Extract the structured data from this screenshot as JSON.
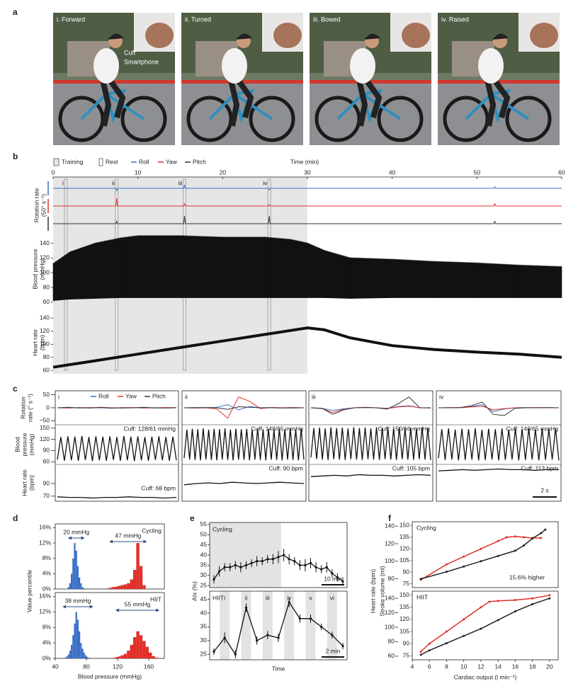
{
  "a": {
    "label": "a",
    "photos": [
      "i. Forward",
      "ii. Turned",
      "iii. Bowed",
      "iv. Raised"
    ],
    "annotations": [
      "Cuff",
      "Smartphone"
    ]
  },
  "b": {
    "label": "b",
    "legend": [
      "Training",
      "Rest"
    ],
    "xlabel": "Time (min)",
    "xlim": [
      0,
      60
    ],
    "xticks": [
      0,
      10,
      20,
      30,
      40,
      50,
      60
    ],
    "training_span": [
      0,
      30
    ],
    "rest_markers": [
      {
        "label": "i",
        "x": 1.5
      },
      {
        "label": "ii",
        "x": 7.5
      },
      {
        "label": "iii",
        "x": 15.5
      },
      {
        "label": "iv",
        "x": 25.5
      }
    ],
    "rotation": {
      "ylabel": [
        "Rotation rate",
        "(50° s⁻¹)"
      ],
      "ylim": [
        -1,
        1
      ],
      "x": [
        0,
        7.4,
        7.5,
        7.6,
        15.4,
        15.5,
        15.6,
        25.4,
        25.5,
        25.6,
        52,
        52.1,
        52.2,
        60
      ],
      "series": [
        {
          "name": "Roll",
          "color": "#3a6fc4",
          "values": [
            0,
            0,
            -0.3,
            0,
            0,
            0.4,
            0,
            0,
            -0.2,
            0,
            0,
            0.2,
            0,
            0
          ]
        },
        {
          "name": "Yaw",
          "color": "#e0302a",
          "values": [
            0,
            0,
            1,
            0,
            0,
            0.3,
            0,
            0,
            0.2,
            0,
            0,
            0.3,
            0,
            0
          ]
        },
        {
          "name": "Pitch",
          "color": "#333333",
          "values": [
            0,
            0,
            0.3,
            0,
            0,
            1,
            0,
            0,
            1,
            0,
            0,
            0.3,
            0,
            0
          ]
        }
      ]
    },
    "bp": {
      "ylabel": [
        "Blood pressure",
        "(mmHg)"
      ],
      "ylim": [
        55,
        155
      ],
      "yticks": [
        60,
        80,
        100,
        120,
        140
      ],
      "x": [
        0,
        2,
        5,
        8,
        10,
        15,
        20,
        25,
        28,
        30,
        32,
        35,
        40,
        45,
        50,
        55,
        60
      ],
      "upper": [
        112,
        128,
        140,
        147,
        150,
        150,
        148,
        148,
        145,
        140,
        130,
        120,
        118,
        115,
        113,
        110,
        108
      ],
      "lower": [
        62,
        64,
        65,
        66,
        66,
        66,
        66,
        66,
        66,
        66,
        66,
        65,
        66,
        66,
        66,
        66,
        66
      ]
    },
    "hr": {
      "ylabel": [
        "Heart rate",
        "(bpm)"
      ],
      "ylim": [
        55,
        150
      ],
      "yticks": [
        60,
        80,
        100,
        120,
        140
      ],
      "x": [
        0,
        5,
        10,
        15,
        20,
        25,
        30,
        32,
        35,
        40,
        45,
        50,
        55,
        60
      ],
      "values": [
        65,
        75,
        85,
        95,
        105,
        115,
        125,
        122,
        110,
        98,
        92,
        88,
        85,
        80
      ]
    }
  },
  "c": {
    "label": "c",
    "legend": [
      {
        "name": "Roll",
        "color": "#3a6fc4"
      },
      {
        "name": "Yaw",
        "color": "#e0302a"
      },
      {
        "name": "Pitch",
        "color": "#333333"
      }
    ],
    "rot_ylabel": [
      "Rotation",
      "rate (° s⁻¹)"
    ],
    "bp_ylabel": [
      "Blood",
      "pressure",
      "(mmHg)"
    ],
    "hr_ylabel": [
      "Heart rate",
      "(bpm)"
    ],
    "rot_ylim": [
      -60,
      60
    ],
    "rot_yticks": [
      50,
      0,
      {
        "value": -50,
        "label": "−50"
      }
    ],
    "bp_ylim": [
      55,
      155
    ],
    "bp_yticks": [
      150,
      120,
      90,
      60
    ],
    "hr_ylim": [
      62,
      118
    ],
    "hr_yticks": [
      90,
      70
    ],
    "scalebar": "2 s",
    "panels": [
      {
        "label": "i",
        "bp_cuff": "Cuff: 128/61 mmHg",
        "hr_cuff": "Cuff: 68 bpm",
        "rot": [
          [
            0,
            2,
            -1,
            1,
            0,
            -2,
            1,
            0,
            2,
            -1,
            0,
            1
          ],
          [
            0,
            -1,
            1,
            0,
            2,
            -1,
            0,
            1,
            -1,
            0,
            1,
            0
          ],
          [
            0,
            1,
            0,
            -1,
            1,
            0,
            -1,
            0,
            1,
            0,
            -1,
            0
          ]
        ],
        "bp": [
          66,
          126,
          63,
          128,
          64,
          127,
          63,
          129,
          65,
          126,
          62,
          128,
          64,
          127,
          63,
          128,
          65,
          126,
          63,
          129,
          64,
          127,
          62,
          128,
          64,
          126,
          63,
          127,
          65,
          128,
          64,
          126,
          63,
          127,
          64
        ],
        "hr": [
          69,
          68,
          68,
          67,
          68,
          68,
          69,
          68,
          68,
          67,
          68
        ]
      },
      {
        "label": "ii",
        "bp_cuff": "Cuff: 148/65 mmHg",
        "hr_cuff": "Cuff: 90 bpm",
        "rot": [
          [
            0,
            1,
            0,
            2,
            12,
            -8,
            5,
            0,
            1,
            0,
            -1,
            0
          ],
          [
            0,
            -1,
            0,
            -5,
            -40,
            42,
            25,
            -3,
            1,
            0,
            1,
            0
          ],
          [
            0,
            0,
            1,
            0,
            -6,
            4,
            2,
            0,
            0,
            -1,
            0,
            0
          ]
        ],
        "bp": [
          70,
          146,
          66,
          148,
          65,
          147,
          64,
          149,
          66,
          146,
          65,
          148,
          64,
          147,
          66,
          149,
          65,
          146,
          64,
          148,
          66,
          147,
          65,
          148,
          64,
          146,
          66,
          149,
          65,
          147,
          64,
          148,
          66,
          146,
          65,
          148,
          64,
          147,
          66,
          149,
          65,
          146,
          64,
          148,
          66
        ],
        "hr": [
          88,
          90,
          91,
          90,
          92,
          91,
          90,
          91,
          92,
          91,
          90
        ]
      },
      {
        "label": "iii",
        "bp_cuff": "Cuff: 150/66 mmHg",
        "hr_cuff": "Cuff: 105 bpm",
        "rot": [
          [
            0,
            -2,
            -10,
            -4,
            0,
            1,
            0,
            -2,
            5,
            8,
            0,
            0
          ],
          [
            0,
            -3,
            -18,
            -6,
            0,
            2,
            0,
            -3,
            3,
            6,
            0,
            -1
          ],
          [
            0,
            -2,
            -25,
            -8,
            0,
            1,
            0,
            -5,
            15,
            42,
            0,
            0
          ]
        ],
        "bp": [
          72,
          150,
          67,
          151,
          66,
          149,
          65,
          152,
          67,
          150,
          66,
          151,
          65,
          149,
          67,
          152,
          66,
          150,
          65,
          151,
          67,
          149,
          66,
          152,
          65,
          150,
          67,
          151,
          66,
          149,
          65,
          152,
          67,
          150,
          66,
          151,
          65,
          149,
          67,
          152,
          66,
          150,
          65
        ],
        "hr": [
          101,
          102,
          103,
          102,
          104,
          103,
          103,
          102,
          103,
          104,
          103
        ]
      },
      {
        "label": "iv",
        "bp_cuff": "Cuff: 148/65 mmHg",
        "hr_cuff": "Cuff: 113 bpm",
        "rot": [
          [
            0,
            0,
            1,
            5,
            12,
            -15,
            -5,
            0,
            1,
            0,
            0,
            0
          ],
          [
            0,
            1,
            0,
            3,
            6,
            -8,
            -3,
            0,
            0,
            1,
            0,
            0
          ],
          [
            0,
            0,
            1,
            8,
            22,
            -25,
            -30,
            -2,
            0,
            0,
            1,
            0
          ]
        ],
        "bp": [
          70,
          147,
          65,
          149,
          66,
          146,
          64,
          148,
          65,
          147,
          66,
          149,
          64,
          146,
          65,
          148,
          66,
          147,
          64,
          149,
          65,
          146,
          66,
          148,
          64,
          147,
          65,
          149,
          66,
          146,
          64,
          148,
          65,
          147,
          66,
          149,
          64
        ],
        "hr": [
          110,
          111,
          112,
          111,
          112,
          113,
          112,
          112,
          111,
          112,
          112
        ]
      }
    ]
  },
  "d": {
    "label": "d",
    "xlabel": "Blood pressure (mmHg)",
    "ylabel": "Value percentile",
    "xlim": [
      40,
      180
    ],
    "xticks": [
      40,
      80,
      120,
      160
    ],
    "ylim": [
      0,
      17
    ],
    "yticks": [
      {
        "value": 0,
        "label": "0%"
      },
      {
        "value": 4,
        "label": "4%"
      },
      {
        "value": 8,
        "label": "8%"
      },
      {
        "value": 12,
        "label": "12%"
      },
      {
        "value": 16,
        "label": "16%"
      }
    ],
    "panels": [
      {
        "name": "Cycling",
        "hist": [
          {
            "color": "#3a6fc4",
            "bins": [
              56,
              58,
              60,
              62,
              64,
              66,
              68,
              70,
              72,
              74,
              76,
              78
            ],
            "values": [
              0.5,
              1.5,
              4,
              8,
              12,
              10,
              6,
              3,
              1.5,
              0.5,
              0.2
            ]
          },
          {
            "color": "#e0302a",
            "bins": [
              108,
              112,
              116,
              120,
              124,
              128,
              132,
              136,
              140,
              144,
              148,
              152,
              156
            ],
            "values": [
              0.3,
              0.5,
              0.6,
              0.8,
              1,
              1.2,
              1.5,
              2.5,
              5,
              12,
              6,
              1
            ]
          }
        ],
        "arrows": [
          {
            "label": "20 mmHg",
            "from": 57,
            "to": 77
          },
          {
            "label": "47 mmHg",
            "from": 110,
            "to": 157
          }
        ]
      },
      {
        "name": "HIIT",
        "hist": [
          {
            "color": "#3a6fc4",
            "bins": [
              52,
              54,
              56,
              58,
              60,
              62,
              64,
              66,
              68,
              70,
              72,
              74,
              76,
              78,
              80,
              82,
              84
            ],
            "values": [
              0.2,
              0.5,
              1,
              2,
              3.5,
              6,
              9,
              12,
              10,
              7,
              4,
              2.5,
              1.5,
              0.8,
              0.4,
              0.2
            ]
          },
          {
            "color": "#e0302a",
            "bins": [
              116,
              120,
              124,
              128,
              132,
              136,
              140,
              144,
              148,
              152,
              156,
              160,
              164,
              168,
              172
            ],
            "values": [
              0.3,
              0.5,
              0.8,
              1.2,
              2,
              3.5,
              5.5,
              7,
              6,
              4.5,
              3,
              1.5,
              0.6,
              0.2
            ]
          }
        ],
        "arrows": [
          {
            "label": "38 mmHg",
            "from": 50,
            "to": 88
          },
          {
            "label": "55 mmHg",
            "from": 118,
            "to": 173
          }
        ]
      }
    ]
  },
  "e": {
    "label": "e",
    "ylabel": "AIx (%)",
    "xlabel": "Time",
    "top": {
      "name": "Cycling",
      "scalebar": "10 min",
      "ylim": [
        24,
        56
      ],
      "yticks": [
        25,
        30,
        35,
        40,
        45,
        50,
        55
      ],
      "values": [
        28,
        32,
        34,
        34,
        35,
        34,
        35,
        36,
        37,
        37,
        38,
        38,
        39,
        40,
        38,
        37,
        35,
        35,
        36,
        34,
        33,
        34,
        31,
        29,
        27
      ],
      "errors": [
        2,
        2.5,
        2,
        2,
        2,
        2.5,
        2,
        2,
        2.5,
        2,
        2,
        2.5,
        3,
        3,
        2.5,
        2,
        2.5,
        3,
        2.5,
        2.5,
        2,
        2.5,
        2,
        2,
        2
      ]
    },
    "bottom": {
      "name": "HIIT",
      "scalebar": "2 min",
      "ylim": [
        23,
        48
      ],
      "yticks": [
        25,
        30,
        35,
        40,
        45
      ],
      "phases": [
        "i",
        "ii",
        "iii",
        "iv",
        "v",
        "vi"
      ],
      "values": [
        26,
        31,
        25,
        42,
        30,
        32,
        31,
        44,
        38,
        38,
        35,
        32,
        28
      ],
      "errors": [
        1.2,
        2,
        1.5,
        1.5,
        1.5,
        1.5,
        1.5,
        1.8,
        1.5,
        1.5,
        1.2,
        1.2,
        1.2
      ]
    }
  },
  "f": {
    "label": "f",
    "xlabel": "Cardiac output (l min⁻¹)",
    "ylabel_hr": "Heart rate (bpm)",
    "ylabel_sv": "Stroke volume (ml)",
    "xlim": [
      4,
      21
    ],
    "xticks": [
      4,
      6,
      8,
      10,
      12,
      14,
      16,
      18,
      20
    ],
    "annotation": "15.6% higher",
    "panels": [
      {
        "name": "Cycling",
        "hr_ylim": [
          70,
          145
        ],
        "hr_yticks": [
          80,
          100,
          120,
          140
        ],
        "sv_ylim": [
          70,
          155
        ],
        "sv_yticks": [
          75,
          90,
          105,
          120,
          135,
          150
        ],
        "sv": {
          "color": "#e0302a",
          "x": [
            5,
            8,
            10,
            12,
            14,
            15,
            16,
            17,
            18,
            19
          ],
          "values": [
            80,
            100,
            110,
            120,
            130,
            135,
            136,
            135,
            134,
            134
          ]
        },
        "hr": {
          "color": "#222222",
          "x": [
            5,
            8,
            10,
            12,
            14,
            16,
            17,
            18,
            19,
            19.5
          ],
          "values": [
            80,
            88,
            94,
            100,
            106,
            112,
            118,
            126,
            132,
            136
          ]
        }
      },
      {
        "name": "HIIT",
        "hr_ylim": [
          55,
          150
        ],
        "hr_yticks": [
          60,
          80,
          100,
          120,
          140
        ],
        "sv_ylim": [
          70,
          155
        ],
        "sv_yticks": [
          75,
          90,
          105,
          120,
          135,
          150
        ],
        "sv": {
          "color": "#e0302a",
          "x": [
            5,
            6,
            8,
            10,
            12,
            13,
            14,
            16,
            18,
            20
          ],
          "values": [
            80,
            90,
            105,
            120,
            135,
            142,
            143,
            144,
            146,
            150
          ]
        },
        "hr": {
          "color": "#222222",
          "x": [
            5,
            6,
            8,
            10,
            12,
            14,
            16,
            18,
            20
          ],
          "values": [
            62,
            68,
            78,
            88,
            98,
            110,
            122,
            132,
            140
          ]
        }
      }
    ]
  }
}
